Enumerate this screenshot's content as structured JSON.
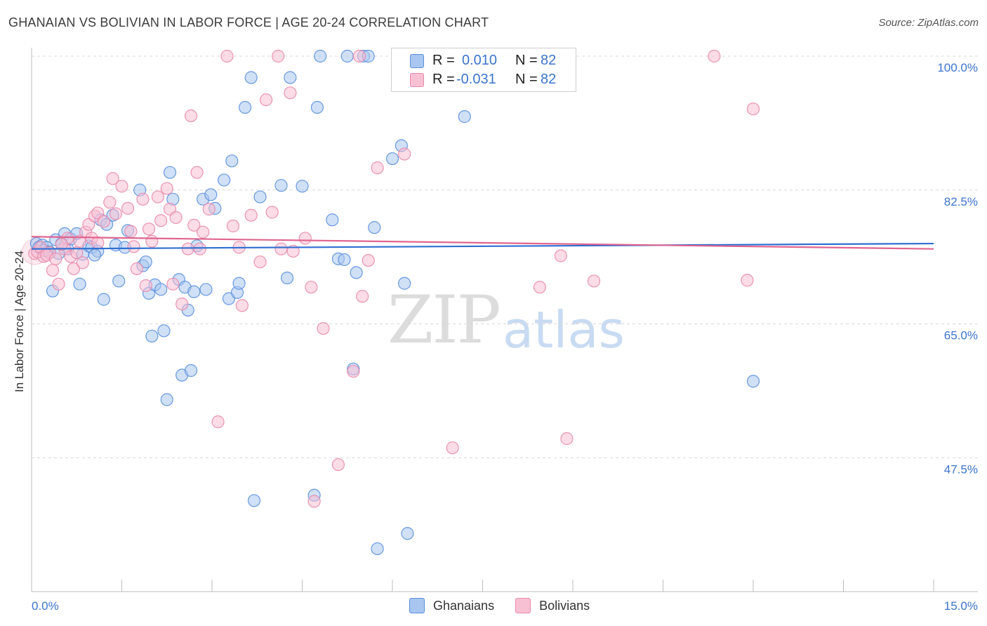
{
  "header": {
    "title": "GHANAIAN VS BOLIVIAN IN LABOR FORCE | AGE 20-24 CORRELATION CHART",
    "source": "Source: ZipAtlas.com"
  },
  "watermark": {
    "zip": "ZIP",
    "atlas": "atlas"
  },
  "legend_top": {
    "rows": [
      {
        "r_label": "R =",
        "r_value": "0.010",
        "n_label": "N =",
        "n_value": "82"
      },
      {
        "r_label": "R =",
        "r_value": "-0.031",
        "n_label": "N =",
        "n_value": "82"
      }
    ]
  },
  "legend_bottom": {
    "items": [
      "Ghanaians",
      "Bolivians"
    ]
  },
  "colors": {
    "blue_fill": "#a9c6f0",
    "blue_stroke": "#5a8fdc",
    "blue_line": "#2f6fd0",
    "pink_fill": "#f8c0d3",
    "pink_stroke": "#e88aab",
    "pink_line": "#e0658f",
    "tick_label": "#3c74cc",
    "grid": "#d8d8d8"
  },
  "chart_data": {
    "type": "scatter",
    "title": "GHANAIAN VS BOLIVIAN IN LABOR FORCE | AGE 20-24 CORRELATION CHART",
    "ylabel": "In Labor Force | Age 20-24",
    "xlim": [
      0,
      15
    ],
    "ylim": [
      30,
      100
    ],
    "x_tick_labels": [
      "0.0%",
      "15.0%"
    ],
    "y_ticks": [
      47.5,
      65.0,
      82.5,
      100.0
    ],
    "y_tick_labels": [
      "47.5%",
      "65.0%",
      "82.5%",
      "100.0%"
    ],
    "grid": true,
    "legend_position": "top-center",
    "series": [
      {
        "name": "Ghanaians",
        "r": 0.01,
        "n": 82,
        "trend": {
          "x": [
            0,
            15
          ],
          "y": [
            74.8,
            75.5
          ]
        },
        "points": [
          [
            0.08,
            75.5
          ],
          [
            0.12,
            75.0
          ],
          [
            0.18,
            75.3
          ],
          [
            0.25,
            75.0
          ],
          [
            0.35,
            69.3
          ],
          [
            0.4,
            76.0
          ],
          [
            0.5,
            75.5
          ],
          [
            0.55,
            76.8
          ],
          [
            0.6,
            74.8
          ],
          [
            0.65,
            76.1
          ],
          [
            0.75,
            76.8
          ],
          [
            0.8,
            70.2
          ],
          [
            0.85,
            74.1
          ],
          [
            0.95,
            75.2
          ],
          [
            1.0,
            75.0
          ],
          [
            1.1,
            74.5
          ],
          [
            1.15,
            78.6
          ],
          [
            1.2,
            68.2
          ],
          [
            1.25,
            78.0
          ],
          [
            1.35,
            79.2
          ],
          [
            1.4,
            75.3
          ],
          [
            1.45,
            70.6
          ],
          [
            1.55,
            75.0
          ],
          [
            1.6,
            77.2
          ],
          [
            1.8,
            82.5
          ],
          [
            1.85,
            72.6
          ],
          [
            1.9,
            73.1
          ],
          [
            1.95,
            69.0
          ],
          [
            2.0,
            63.4
          ],
          [
            2.05,
            70.1
          ],
          [
            2.15,
            69.5
          ],
          [
            2.2,
            64.1
          ],
          [
            2.25,
            55.1
          ],
          [
            2.3,
            84.8
          ],
          [
            2.35,
            81.3
          ],
          [
            2.45,
            70.8
          ],
          [
            2.5,
            58.3
          ],
          [
            2.55,
            69.8
          ],
          [
            2.6,
            66.8
          ],
          [
            2.65,
            58.9
          ],
          [
            2.7,
            69.2
          ],
          [
            2.85,
            81.3
          ],
          [
            2.9,
            69.5
          ],
          [
            2.98,
            81.9
          ],
          [
            3.05,
            80.1
          ],
          [
            3.2,
            83.8
          ],
          [
            3.28,
            68.3
          ],
          [
            3.33,
            86.3
          ],
          [
            3.42,
            69.1
          ],
          [
            3.45,
            70.3
          ],
          [
            3.55,
            93.3
          ],
          [
            3.65,
            97.2
          ],
          [
            3.7,
            41.9
          ],
          [
            3.8,
            81.6
          ],
          [
            4.15,
            83.1
          ],
          [
            4.25,
            71.0
          ],
          [
            4.3,
            97.2
          ],
          [
            4.5,
            83.0
          ],
          [
            4.7,
            42.6
          ],
          [
            4.75,
            93.3
          ],
          [
            4.8,
            100.0
          ],
          [
            5.0,
            78.6
          ],
          [
            5.1,
            73.5
          ],
          [
            5.2,
            73.4
          ],
          [
            5.25,
            100.0
          ],
          [
            5.35,
            59.1
          ],
          [
            5.4,
            71.7
          ],
          [
            5.52,
            100.0
          ],
          [
            5.6,
            100.0
          ],
          [
            5.7,
            77.6
          ],
          [
            5.75,
            35.6
          ],
          [
            6.0,
            86.6
          ],
          [
            6.15,
            88.3
          ],
          [
            6.2,
            70.3
          ],
          [
            6.25,
            37.6
          ],
          [
            7.2,
            92.1
          ],
          [
            12.0,
            57.5
          ],
          [
            0.3,
            74.4
          ],
          [
            0.45,
            74.2
          ],
          [
            1.05,
            74.0
          ],
          [
            2.75,
            75.2
          ],
          [
            0.2,
            74.6
          ]
        ]
      },
      {
        "name": "Bolivians",
        "r": -0.031,
        "n": 82,
        "trend": {
          "x": [
            0,
            15
          ],
          "y": [
            76.4,
            74.8
          ]
        },
        "points": [
          [
            0.05,
            74.2
          ],
          [
            0.1,
            74.4
          ],
          [
            0.15,
            75.0
          ],
          [
            0.2,
            73.8
          ],
          [
            0.3,
            74.3
          ],
          [
            0.35,
            72.0
          ],
          [
            0.45,
            70.2
          ],
          [
            0.55,
            74.8
          ],
          [
            0.6,
            76.2
          ],
          [
            0.65,
            73.8
          ],
          [
            0.7,
            72.2
          ],
          [
            0.75,
            74.3
          ],
          [
            0.85,
            73.0
          ],
          [
            0.9,
            77.0
          ],
          [
            0.95,
            78.0
          ],
          [
            1.0,
            76.2
          ],
          [
            1.05,
            79.1
          ],
          [
            1.1,
            75.6
          ],
          [
            1.1,
            79.5
          ],
          [
            1.2,
            78.4
          ],
          [
            1.3,
            80.9
          ],
          [
            1.35,
            84.0
          ],
          [
            1.4,
            79.4
          ],
          [
            1.5,
            83.0
          ],
          [
            1.6,
            80.1
          ],
          [
            1.65,
            77.1
          ],
          [
            1.7,
            75.1
          ],
          [
            1.75,
            72.2
          ],
          [
            1.85,
            81.3
          ],
          [
            1.9,
            70.0
          ],
          [
            1.95,
            77.4
          ],
          [
            2.0,
            75.8
          ],
          [
            2.1,
            81.6
          ],
          [
            2.15,
            78.5
          ],
          [
            2.25,
            82.7
          ],
          [
            2.3,
            80.0
          ],
          [
            2.35,
            70.2
          ],
          [
            2.4,
            78.9
          ],
          [
            2.5,
            67.6
          ],
          [
            2.6,
            74.8
          ],
          [
            2.65,
            92.2
          ],
          [
            2.7,
            77.9
          ],
          [
            2.75,
            84.8
          ],
          [
            2.8,
            74.8
          ],
          [
            2.85,
            77.0
          ],
          [
            2.95,
            80.0
          ],
          [
            3.1,
            52.2
          ],
          [
            3.25,
            100.0
          ],
          [
            3.35,
            77.8
          ],
          [
            3.45,
            75.0
          ],
          [
            3.5,
            67.4
          ],
          [
            3.65,
            79.2
          ],
          [
            3.8,
            73.1
          ],
          [
            3.9,
            94.3
          ],
          [
            4.0,
            79.6
          ],
          [
            4.1,
            100.0
          ],
          [
            4.15,
            74.8
          ],
          [
            4.3,
            95.2
          ],
          [
            4.35,
            74.5
          ],
          [
            4.55,
            76.2
          ],
          [
            4.65,
            69.8
          ],
          [
            4.7,
            41.8
          ],
          [
            4.85,
            64.4
          ],
          [
            5.1,
            46.6
          ],
          [
            5.35,
            58.8
          ],
          [
            5.45,
            100.0
          ],
          [
            5.5,
            68.6
          ],
          [
            5.6,
            73.3
          ],
          [
            5.75,
            85.4
          ],
          [
            6.2,
            87.2
          ],
          [
            7.0,
            48.8
          ],
          [
            8.45,
            69.8
          ],
          [
            8.8,
            73.9
          ],
          [
            8.9,
            50.0
          ],
          [
            9.35,
            70.6
          ],
          [
            11.35,
            100.0
          ],
          [
            11.9,
            70.7
          ],
          [
            12.0,
            93.1
          ],
          [
            0.25,
            74.0
          ],
          [
            0.5,
            75.4
          ],
          [
            0.8,
            75.8
          ],
          [
            0.4,
            73.5
          ]
        ]
      }
    ]
  }
}
